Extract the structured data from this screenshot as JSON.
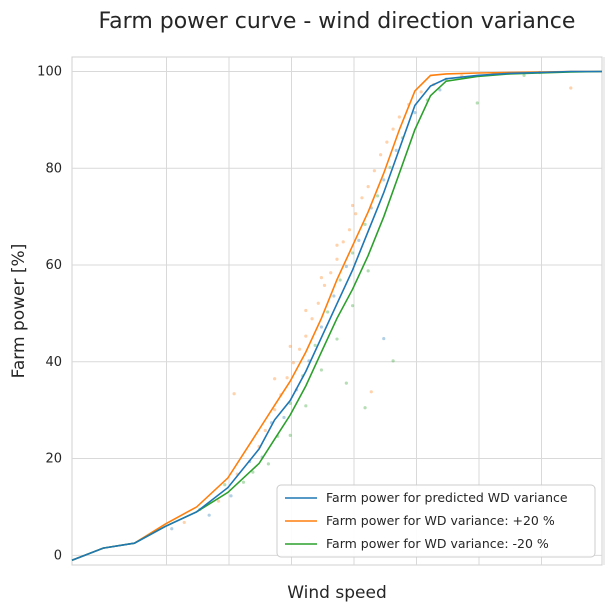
{
  "chart_data": {
    "type": "line",
    "title": "Farm power curve - wind direction variance",
    "xlabel": "Wind speed",
    "ylabel": "Farm power [%]",
    "x_tick_labels_shown": false,
    "ylim": [
      -2,
      103
    ],
    "yticks": [
      0,
      20,
      40,
      60,
      80,
      100
    ],
    "grid": true,
    "legend_position": "lower-right",
    "xlim": [
      0,
      17
    ],
    "x": [
      0,
      1,
      2,
      3,
      4,
      5,
      6,
      6.5,
      7,
      7.5,
      8,
      8.5,
      9,
      9.5,
      10,
      10.5,
      11,
      11.5,
      12,
      13,
      14,
      15,
      16,
      17
    ],
    "series": [
      {
        "name": "Farm power for predicted WD variance",
        "color": "#1f77b4",
        "values": [
          -1,
          1.5,
          2.5,
          6,
          9,
          14,
          22,
          28,
          32,
          38,
          45,
          52,
          59,
          67,
          75,
          84,
          93,
          97,
          98.5,
          99.2,
          99.6,
          99.8,
          100,
          100
        ]
      },
      {
        "name": "Farm power for WD variance: +20 %",
        "color": "#ff7f0e",
        "values": [
          -1,
          1.5,
          2.5,
          6.5,
          10,
          16,
          26,
          31,
          36,
          42,
          49,
          57,
          64,
          71,
          79,
          88,
          96,
          99.2,
          99.5,
          99.7,
          99.8,
          99.9,
          100,
          100
        ]
      },
      {
        "name": "Farm power for WD variance: -20 %",
        "color": "#2ca02c",
        "values": [
          -1,
          1.5,
          2.5,
          6,
          9,
          13,
          19,
          24,
          29,
          35,
          42,
          49,
          55,
          62,
          70,
          79,
          88,
          95,
          98,
          99,
          99.5,
          99.7,
          99.9,
          100
        ]
      }
    ],
    "scatter_points": [
      [
        3.2,
        5.5,
        0
      ],
      [
        3.6,
        6.8,
        1
      ],
      [
        4.1,
        9.5,
        2
      ],
      [
        4.4,
        8.3,
        0
      ],
      [
        4.7,
        11.2,
        1
      ],
      [
        4.9,
        14.6,
        2
      ],
      [
        5.1,
        12.3,
        0
      ],
      [
        5.3,
        16.8,
        1
      ],
      [
        5.5,
        15.1,
        2
      ],
      [
        5.7,
        19.4,
        0
      ],
      [
        5.8,
        17.2,
        2
      ],
      [
        6.0,
        22.5,
        1
      ],
      [
        6.1,
        20.3,
        0
      ],
      [
        6.2,
        25.8,
        1
      ],
      [
        6.3,
        18.9,
        2
      ],
      [
        6.4,
        27.4,
        0
      ],
      [
        6.5,
        30.1,
        1
      ],
      [
        6.6,
        24.6,
        2
      ],
      [
        6.7,
        33.2,
        1
      ],
      [
        6.8,
        28.5,
        0
      ],
      [
        6.9,
        36.7,
        1
      ],
      [
        7.0,
        31.4,
        2
      ],
      [
        7.1,
        39.8,
        1
      ],
      [
        7.2,
        34.2,
        0
      ],
      [
        7.3,
        42.6,
        1
      ],
      [
        7.4,
        37.1,
        2
      ],
      [
        7.5,
        45.3,
        1
      ],
      [
        7.6,
        40.2,
        0
      ],
      [
        7.7,
        48.9,
        1
      ],
      [
        7.8,
        43.4,
        2
      ],
      [
        7.9,
        52.1,
        1
      ],
      [
        8.0,
        47.2,
        0
      ],
      [
        8.1,
        55.8,
        1
      ],
      [
        8.2,
        50.3,
        2
      ],
      [
        8.3,
        58.4,
        1
      ],
      [
        8.4,
        53.6,
        0
      ],
      [
        8.5,
        61.2,
        1
      ],
      [
        8.6,
        56.9,
        2
      ],
      [
        8.7,
        64.8,
        1
      ],
      [
        8.8,
        59.7,
        0
      ],
      [
        8.9,
        67.3,
        1
      ],
      [
        9.0,
        62.5,
        2
      ],
      [
        9.1,
        70.6,
        1
      ],
      [
        9.2,
        65.1,
        0
      ],
      [
        9.3,
        73.9,
        1
      ],
      [
        9.4,
        68.4,
        2
      ],
      [
        9.5,
        76.2,
        1
      ],
      [
        9.6,
        71.8,
        0
      ],
      [
        9.7,
        79.5,
        1
      ],
      [
        9.8,
        74.3,
        2
      ],
      [
        9.9,
        82.8,
        1
      ],
      [
        10.0,
        77.6,
        0
      ],
      [
        10.1,
        85.4,
        1
      ],
      [
        10.2,
        80.2,
        2
      ],
      [
        10.3,
        88.1,
        1
      ],
      [
        10.4,
        83.7,
        0
      ],
      [
        10.5,
        90.6,
        1
      ],
      [
        10.6,
        86.3,
        2
      ],
      [
        10.8,
        93.2,
        1
      ],
      [
        11.0,
        91.5,
        0
      ],
      [
        11.2,
        95.8,
        1
      ],
      [
        11.4,
        94.1,
        2
      ],
      [
        11.6,
        97.3,
        1
      ],
      [
        11.8,
        96.2,
        0
      ],
      [
        12.0,
        98.4,
        2
      ],
      [
        12.5,
        99.1,
        1
      ],
      [
        13.0,
        93.5,
        2
      ],
      [
        13.5,
        99.4,
        0
      ],
      [
        14.0,
        99.6,
        1
      ],
      [
        14.5,
        99.2,
        2
      ],
      [
        15.0,
        99.8,
        0
      ],
      [
        16.0,
        96.6,
        1
      ],
      [
        7.0,
        24.8,
        2
      ],
      [
        7.5,
        30.9,
        2
      ],
      [
        8.0,
        38.3,
        2
      ],
      [
        8.5,
        44.7,
        2
      ],
      [
        9.0,
        51.6,
        2
      ],
      [
        9.5,
        58.8,
        2
      ],
      [
        6.5,
        36.5,
        1
      ],
      [
        7.0,
        43.2,
        1
      ],
      [
        7.5,
        50.6,
        1
      ],
      [
        8.0,
        57.4,
        1
      ],
      [
        8.5,
        64.1,
        1
      ],
      [
        9.0,
        72.3,
        1
      ],
      [
        5.2,
        33.4,
        1
      ],
      [
        9.4,
        30.5,
        2
      ],
      [
        10.0,
        44.8,
        0
      ],
      [
        8.8,
        35.6,
        2
      ],
      [
        9.6,
        33.8,
        1
      ],
      [
        10.3,
        40.2,
        2
      ]
    ]
  }
}
